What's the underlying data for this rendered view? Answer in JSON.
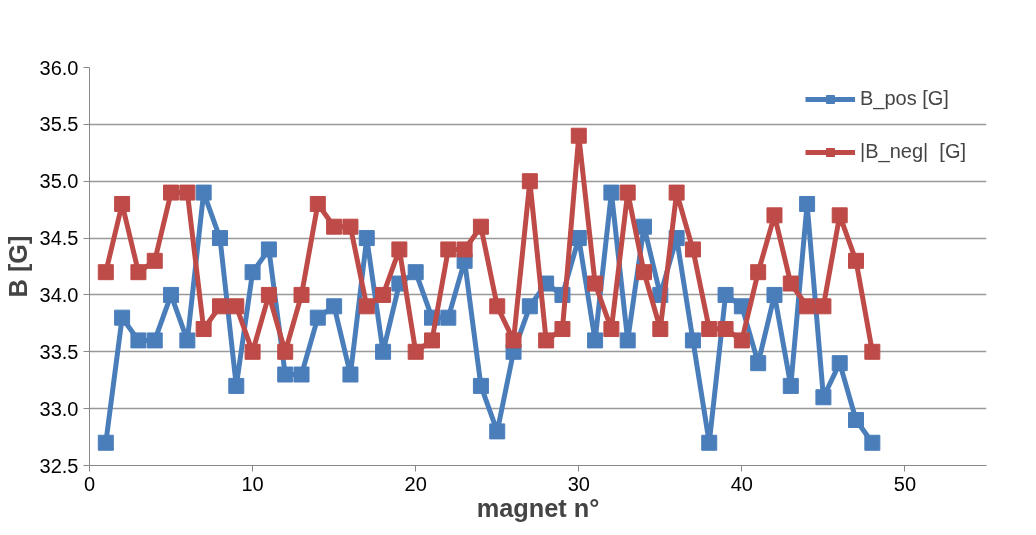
{
  "chart_data": {
    "type": "line",
    "xlabel": "magnet n°",
    "ylabel": "B [G]",
    "x": [
      1,
      2,
      3,
      4,
      5,
      6,
      7,
      8,
      9,
      10,
      11,
      12,
      13,
      14,
      15,
      16,
      17,
      18,
      19,
      20,
      21,
      22,
      23,
      24,
      25,
      26,
      27,
      28,
      29,
      30,
      31,
      32,
      33,
      34,
      35,
      36,
      37,
      38,
      39,
      40,
      41,
      42,
      43,
      44,
      45,
      46,
      47,
      48
    ],
    "series": [
      {
        "name": "B_pos [G]",
        "color": "#4a7ebb",
        "values": [
          32.7,
          33.8,
          33.6,
          33.6,
          34.0,
          33.6,
          34.9,
          34.5,
          33.2,
          34.2,
          34.4,
          33.3,
          33.3,
          33.8,
          33.9,
          33.3,
          34.5,
          33.5,
          34.1,
          34.2,
          33.8,
          33.8,
          34.3,
          33.2,
          32.8,
          33.5,
          33.9,
          34.1,
          34.0,
          34.5,
          33.6,
          34.9,
          33.6,
          34.6,
          34.0,
          34.5,
          33.6,
          32.7,
          34.0,
          33.9,
          33.4,
          34.0,
          33.2,
          34.8,
          33.1,
          33.4,
          32.9,
          32.7
        ]
      },
      {
        "name": "|B_neg|  [G]",
        "color": "#be4b48",
        "values": [
          34.2,
          34.8,
          34.2,
          34.3,
          34.9,
          34.9,
          33.7,
          33.9,
          33.9,
          33.5,
          34.0,
          33.5,
          34.0,
          34.8,
          34.6,
          34.6,
          33.9,
          34.0,
          34.4,
          33.5,
          33.6,
          34.4,
          34.4,
          34.6,
          33.9,
          33.6,
          35.0,
          33.6,
          33.7,
          35.4,
          34.1,
          33.7,
          34.9,
          34.2,
          33.7,
          34.9,
          34.4,
          33.7,
          33.7,
          33.6,
          34.2,
          34.7,
          34.1,
          33.9,
          33.9,
          34.7,
          34.3,
          33.5
        ]
      }
    ],
    "xlim": [
      0,
      55
    ],
    "xticks": [
      0,
      10,
      20,
      30,
      40,
      50
    ],
    "ylim": [
      32.5,
      36.0
    ],
    "yticks": [
      32.5,
      {
        "value": 33,
        "label": "33.0"
      },
      33.5,
      {
        "value": 34,
        "label": "34.0"
      },
      34.5,
      {
        "value": 35,
        "label": "35.0"
      },
      35.5,
      {
        "value": 36,
        "label": "36.0"
      }
    ],
    "grid": "y",
    "legend": "top right",
    "marker": "square",
    "line_style": "solid"
  }
}
